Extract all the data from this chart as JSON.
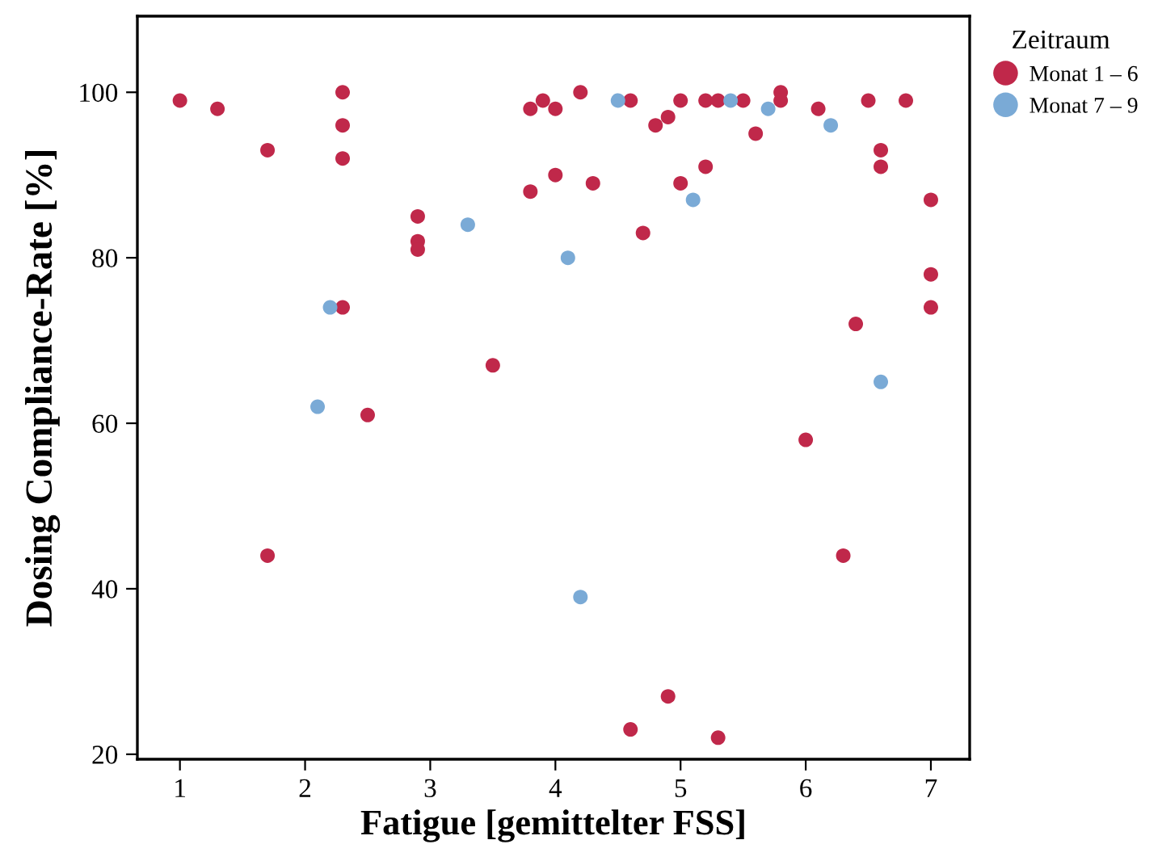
{
  "chart_data": {
    "type": "scatter",
    "xlabel": "Fatigue [gemittelter FSS]",
    "ylabel": "Dosing Compliance-Rate [%]",
    "legend_title": "Zeitraum",
    "legend": "top right",
    "grid": false,
    "marker": "circle",
    "xlim": [
      0.66,
      7.31
    ],
    "ylim": [
      19.4,
      109.2
    ],
    "xticks": [
      1,
      2,
      3,
      4,
      5,
      6,
      7
    ],
    "yticks": [
      20,
      40,
      60,
      80,
      100
    ],
    "series": [
      {
        "name": "Monat 1 – 6",
        "color": "#c0284a",
        "x": [
          1,
          1.3,
          1.7,
          1.7,
          2.3,
          2.3,
          2.3,
          2.3,
          2.5,
          2.9,
          2.9,
          2.9,
          3.5,
          3.8,
          3.8,
          3.9,
          4,
          4,
          4.2,
          4.3,
          4.6,
          4.6,
          4.7,
          4.8,
          4.9,
          4.9,
          5,
          5,
          5.2,
          5.2,
          5.3,
          5.3,
          5.5,
          5.6,
          5.8,
          5.8,
          6,
          6.1,
          6.3,
          6.4,
          6.5,
          6.6,
          6.6,
          6.8,
          7,
          7,
          7
        ],
        "values": [
          99,
          98,
          93,
          44,
          100,
          96,
          92,
          74,
          61,
          85,
          82,
          81,
          67,
          98,
          88,
          99,
          98,
          90,
          100,
          89,
          99,
          23,
          83,
          96,
          97,
          27,
          99,
          89,
          99,
          91,
          99,
          22,
          99,
          95,
          100,
          99,
          58,
          98,
          44,
          72,
          99,
          93,
          91,
          99,
          87,
          78,
          74
        ]
      },
      {
        "name": "Monat 7 – 9",
        "color": "#7aaad6",
        "x": [
          2.1,
          2.2,
          3.3,
          4.1,
          4.2,
          4.5,
          5.1,
          5.4,
          5.7,
          6.2,
          6.6
        ],
        "values": [
          62,
          74,
          84,
          80,
          39,
          99,
          87,
          99,
          98,
          96,
          65
        ]
      }
    ]
  }
}
